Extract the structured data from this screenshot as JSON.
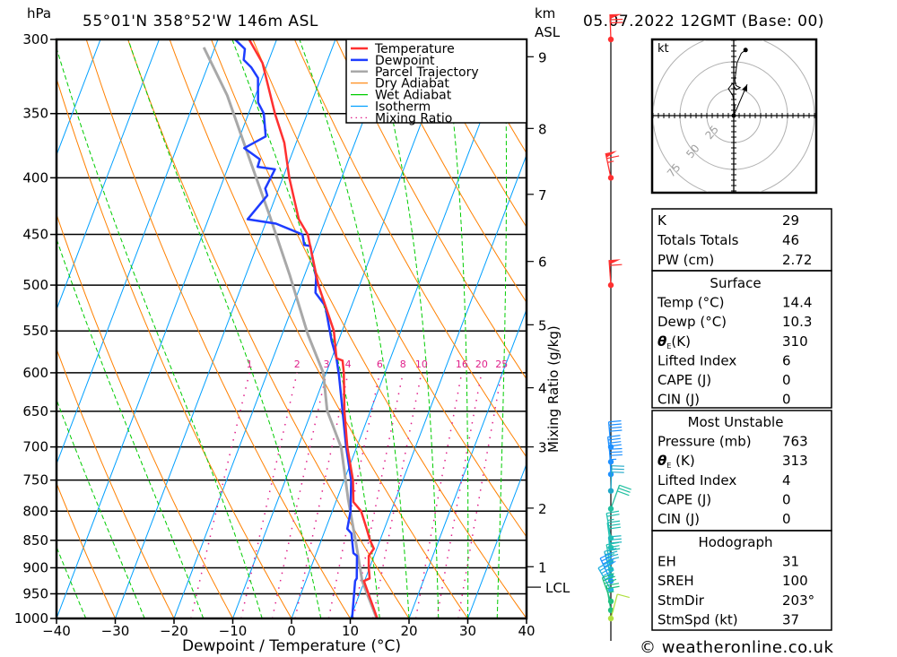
{
  "header": {
    "pressure_unit": "hPa",
    "location": "55°01'N 358°52'W 146m ASL",
    "km_unit": "km",
    "km_ref": "ASL",
    "datetime": "05.07.2022 12GMT (Base: 00)"
  },
  "legend": [
    {
      "label": "Temperature",
      "color": "#ff3030",
      "style": "thick"
    },
    {
      "label": "Dewpoint",
      "color": "#1e3cff",
      "style": "thick"
    },
    {
      "label": "Parcel Trajectory",
      "color": "#a8a8a8",
      "style": "thick"
    },
    {
      "label": "Dry Adiabat",
      "color": "#ff8000",
      "style": "thin"
    },
    {
      "label": "Wet Adiabat",
      "color": "#00cc00",
      "style": "thin"
    },
    {
      "label": "Isotherm",
      "color": "#00a0ff",
      "style": "thin"
    },
    {
      "label": "Mixing Ratio",
      "color": "#e0208a",
      "style": "dotted"
    }
  ],
  "chart_data": {
    "type": "line",
    "title": "Skew-T log-P sounding",
    "xlabel": "Dewpoint / Temperature (°C)",
    "ylabel": "hPa",
    "right_label": "Mixing Ratio (g/kg)",
    "xlim": [
      -40,
      40
    ],
    "ylim": [
      1000,
      300
    ],
    "x_ticks": [
      "−40",
      "−30",
      "−20",
      "−10",
      "0",
      "10",
      "20",
      "30",
      "40"
    ],
    "x_tick_values": [
      -40,
      -30,
      -20,
      -10,
      0,
      10,
      20,
      30,
      40
    ],
    "y_ticks": [
      300,
      350,
      400,
      450,
      500,
      550,
      600,
      650,
      700,
      750,
      800,
      850,
      900,
      950,
      1000
    ],
    "km_ticks": [
      {
        "label": "9",
        "p": 311
      },
      {
        "label": "8",
        "p": 361
      },
      {
        "label": "7",
        "p": 414
      },
      {
        "label": "6",
        "p": 476
      },
      {
        "label": "5",
        "p": 543
      },
      {
        "label": "4",
        "p": 619
      },
      {
        "label": "3",
        "p": 700
      },
      {
        "label": "2",
        "p": 795
      },
      {
        "label": "1",
        "p": 898
      }
    ],
    "lcl": {
      "label": "LCL",
      "p": 937
    },
    "mixing_ratio_labels": [
      "1",
      "2",
      "3",
      "4",
      "6",
      "8",
      "10",
      "16",
      "20",
      "25"
    ],
    "mixing_ratio_values": [
      1,
      2,
      3,
      4,
      6,
      8,
      10,
      16,
      20,
      25
    ],
    "series": [
      {
        "name": "Temperature",
        "points": [
          [
            1000,
            14.6
          ],
          [
            925,
            9.9
          ],
          [
            920,
            10.7
          ],
          [
            901,
            9.9
          ],
          [
            878,
            9.1
          ],
          [
            865,
            9.5
          ],
          [
            850,
            8.3
          ],
          [
            830,
            7.0
          ],
          [
            800,
            4.9
          ],
          [
            785,
            3.0
          ],
          [
            750,
            1.5
          ],
          [
            700,
            -1.6
          ],
          [
            650,
            -4.4
          ],
          [
            600,
            -7.0
          ],
          [
            585,
            -8.0
          ],
          [
            582,
            -9.2
          ],
          [
            550,
            -11.4
          ],
          [
            500,
            -17.0
          ],
          [
            450,
            -22.1
          ],
          [
            436,
            -24.6
          ],
          [
            400,
            -28.9
          ],
          [
            372,
            -32.0
          ],
          [
            350,
            -35.5
          ],
          [
            315,
            -40.9
          ],
          [
            300,
            -44.7
          ]
        ]
      },
      {
        "name": "Dewpoint",
        "points": [
          [
            1000,
            10.3
          ],
          [
            925,
            8.4
          ],
          [
            920,
            8.5
          ],
          [
            878,
            7.1
          ],
          [
            873,
            6.3
          ],
          [
            838,
            4.7
          ],
          [
            830,
            3.7
          ],
          [
            800,
            3.1
          ],
          [
            750,
            1.2
          ],
          [
            700,
            -1.8
          ],
          [
            604,
            -7.6
          ],
          [
            582,
            -9.2
          ],
          [
            562,
            -11.1
          ],
          [
            522,
            -14.5
          ],
          [
            508,
            -17.0
          ],
          [
            492,
            -17.9
          ],
          [
            461,
            -20.9
          ],
          [
            460,
            -22.0
          ],
          [
            450,
            -23.0
          ],
          [
            440,
            -28.2
          ],
          [
            436,
            -33.3
          ],
          [
            415,
            -31.5
          ],
          [
            409,
            -32.3
          ],
          [
            393,
            -31.9
          ],
          [
            391,
            -35.0
          ],
          [
            385,
            -35.1
          ],
          [
            376,
            -38.5
          ],
          [
            367,
            -35.6
          ],
          [
            350,
            -37.4
          ],
          [
            342,
            -39.1
          ],
          [
            325,
            -40.7
          ],
          [
            318,
            -42.5
          ],
          [
            313,
            -44.3
          ],
          [
            306,
            -44.8
          ],
          [
            300,
            -47.1
          ]
        ]
      },
      {
        "name": "Parcel Trajectory",
        "points": [
          [
            1000,
            14.5
          ],
          [
            925,
            9.6
          ],
          [
            857,
            6.2
          ],
          [
            780,
            1.9
          ],
          [
            701,
            -2.6
          ],
          [
            649,
            -7.4
          ],
          [
            600,
            -10.5
          ],
          [
            554,
            -15.6
          ],
          [
            490,
            -22.5
          ],
          [
            432,
            -29.9
          ],
          [
            382,
            -37.3
          ],
          [
            337,
            -44.8
          ],
          [
            305,
            -51.9
          ]
        ]
      }
    ],
    "grid": true
  },
  "winds": [
    {
      "p": 300,
      "dir": 182,
      "spd": 70,
      "color": "#ff3030"
    },
    {
      "p": 400,
      "dir": 192,
      "spd": 65,
      "color": "#ff3030"
    },
    {
      "p": 500,
      "dir": 184,
      "spd": 60,
      "color": "#ff3030"
    },
    {
      "p": 700,
      "dir": 185,
      "spd": 40,
      "color": "#1e90ff"
    },
    {
      "p": 722,
      "dir": 187,
      "spd": 40,
      "color": "#1e90ff"
    },
    {
      "p": 741,
      "dir": 183,
      "spd": 35,
      "color": "#1e90ff"
    },
    {
      "p": 767,
      "dir": 178,
      "spd": 30,
      "color": "#20a8c8"
    },
    {
      "p": 796,
      "dir": 160,
      "spd": 30,
      "color": "#20c0a0"
    },
    {
      "p": 846,
      "dir": 190,
      "spd": 25,
      "color": "#20c0b0"
    },
    {
      "p": 863,
      "dir": 188,
      "spd": 30,
      "color": "#20c0b0"
    },
    {
      "p": 889,
      "dir": 185,
      "spd": 30,
      "color": "#20b8c0"
    },
    {
      "p": 903,
      "dir": 190,
      "spd": 35,
      "color": "#20c0b0"
    },
    {
      "p": 915,
      "dir": 195,
      "spd": 40,
      "color": "#20b0c8"
    },
    {
      "p": 925,
      "dir": 205,
      "spd": 45,
      "color": "#1e90ff"
    },
    {
      "p": 942,
      "dir": 210,
      "spd": 45,
      "color": "#20b0e0"
    },
    {
      "p": 965,
      "dir": 200,
      "spd": 30,
      "color": "#20c080"
    },
    {
      "p": 983,
      "dir": 190,
      "spd": 25,
      "color": "#20c080"
    },
    {
      "p": 1000,
      "dir": 165,
      "spd": 10,
      "color": "#b0e040"
    }
  ],
  "hodograph": {
    "unit_label": "kt",
    "rings": [
      {
        "label": "25",
        "kt": 25
      },
      {
        "label": "50",
        "kt": 50
      },
      {
        "label": "75",
        "kt": 75
      }
    ],
    "trace": [
      [
        0,
        0
      ],
      [
        1,
        8
      ],
      [
        -1,
        19
      ],
      [
        -5,
        25
      ],
      [
        -1,
        30
      ],
      [
        2,
        24
      ],
      [
        6,
        26
      ],
      [
        2,
        28
      ],
      [
        1,
        33
      ],
      [
        3,
        49
      ],
      [
        7,
        58
      ],
      [
        11,
        61
      ]
    ],
    "storm_vector": [
      12.5,
      29
    ]
  },
  "indices": {
    "general": [
      {
        "label": "K",
        "value": "29"
      },
      {
        "label": "Totals Totals",
        "value": "46"
      },
      {
        "label": "PW (cm)",
        "value": "2.72"
      }
    ],
    "surface": {
      "title": "Surface",
      "rows": [
        {
          "label": "Temp (°C)",
          "value": "14.4"
        },
        {
          "label": "Dewp (°C)",
          "value": "10.3"
        },
        {
          "label": "θ",
          "sub": "E",
          "rest": "(K)",
          "value": "310"
        },
        {
          "label": "Lifted Index",
          "value": "6"
        },
        {
          "label": "CAPE (J)",
          "value": "0"
        },
        {
          "label": "CIN (J)",
          "value": "0"
        }
      ]
    },
    "most_unstable": {
      "title": "Most Unstable",
      "rows": [
        {
          "label": "Pressure (mb)",
          "value": "763"
        },
        {
          "label": "θ",
          "sub": "E",
          "rest": " (K)",
          "value": "313"
        },
        {
          "label": "Lifted Index",
          "value": "4"
        },
        {
          "label": "CAPE (J)",
          "value": "0"
        },
        {
          "label": "CIN (J)",
          "value": "0"
        }
      ]
    },
    "hodograph": {
      "title": "Hodograph",
      "rows": [
        {
          "label": "EH",
          "value": "31"
        },
        {
          "label": "SREH",
          "value": "100"
        },
        {
          "label": "StmDir",
          "value": "203°"
        },
        {
          "label": "StmSpd (kt)",
          "value": "37"
        }
      ]
    }
  },
  "footer": {
    "copyright": "© weatheronline.co.uk"
  }
}
